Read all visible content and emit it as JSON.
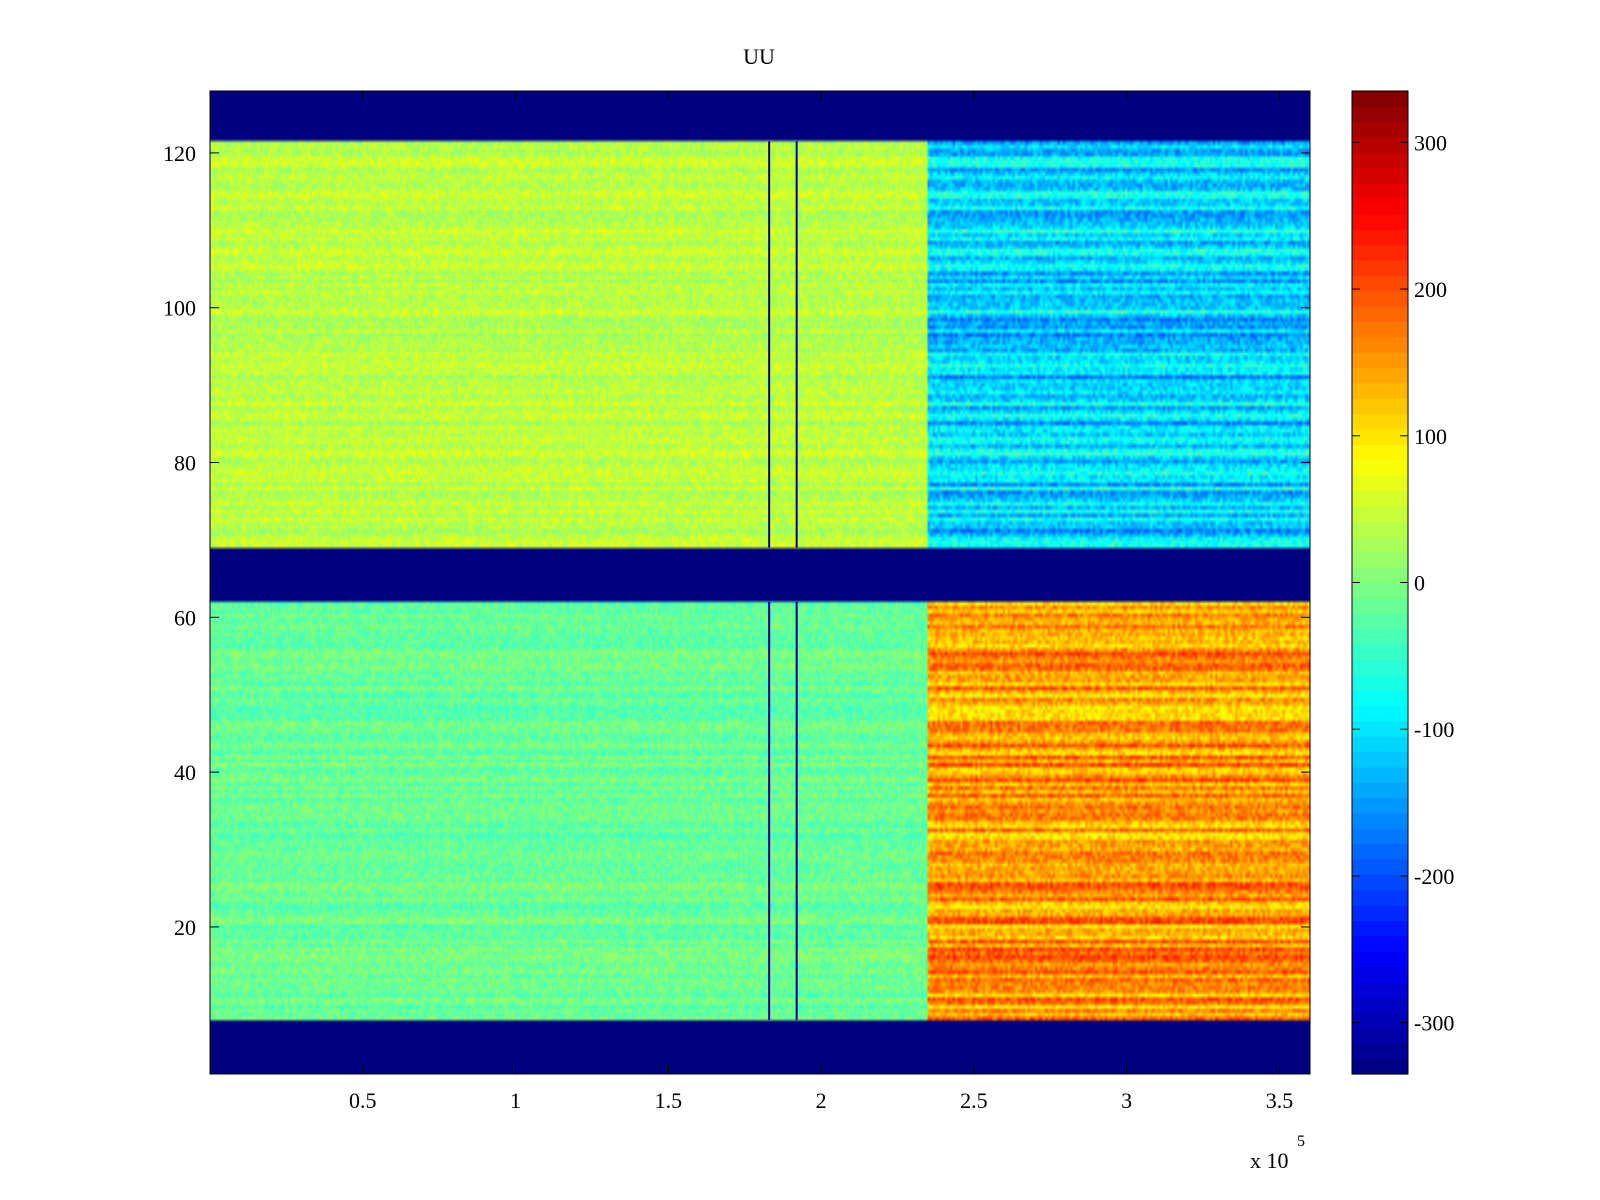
{
  "chart_data": {
    "type": "heatmap",
    "title": "UU",
    "xlabel": "",
    "ylabel": "",
    "x_exponent_label": "x 10",
    "x_exponent_power": "5",
    "xlim": [
      0,
      360000
    ],
    "ylim": [
      1,
      128
    ],
    "x_ticks": [
      0.5,
      1,
      1.5,
      2,
      2.5,
      3,
      3.5
    ],
    "x_tick_labels": [
      "0.5",
      "1",
      "1.5",
      "2",
      "2.5",
      "3",
      "3.5"
    ],
    "y_ticks": [
      20,
      40,
      60,
      80,
      100,
      120
    ],
    "y_tick_labels": [
      "20",
      "40",
      "60",
      "80",
      "100",
      "120"
    ],
    "colormap": "jet",
    "colorbar": {
      "limits": [
        -335,
        335
      ],
      "ticks": [
        -300,
        -200,
        -100,
        0,
        100,
        200,
        300
      ],
      "tick_labels": [
        "-300",
        "-200",
        "-100",
        "0",
        "100",
        "200",
        "300"
      ]
    },
    "masked_rows": [
      {
        "y_range": [
          1,
          8
        ],
        "value": -335
      },
      {
        "y_range": [
          62,
          69
        ],
        "value": -335
      },
      {
        "y_range": [
          121.5,
          128
        ],
        "value": -335
      }
    ],
    "regions": [
      {
        "name": "upper-band-early",
        "x_range": [
          0,
          235000
        ],
        "y_range": [
          69,
          121.5
        ],
        "mean_value": 40
      },
      {
        "name": "upper-band-late",
        "x_range": [
          235000,
          360000
        ],
        "y_range": [
          69,
          121.5
        ],
        "mean_value": -110
      },
      {
        "name": "lower-band-early",
        "x_range": [
          0,
          235000
        ],
        "y_range": [
          8,
          62
        ],
        "mean_value": -15
      },
      {
        "name": "lower-band-late",
        "x_range": [
          235000,
          360000
        ],
        "y_range": [
          8,
          62
        ],
        "mean_value": 150
      }
    ],
    "dark_vertical_lines_x": [
      183000,
      192000
    ]
  }
}
